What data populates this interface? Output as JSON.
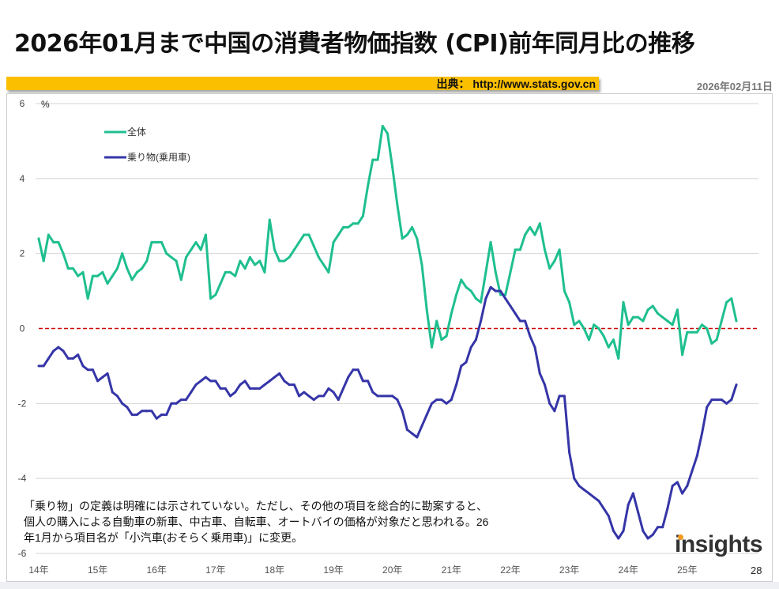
{
  "header": {
    "title": "2026年01月まで中国の消費者物価指数 (CPI)前年同月比の推移",
    "source": "出典： http://www.stats.gov.cn",
    "date": "2026年02月11日"
  },
  "note": [
    "「乗り物」の定義は明確には示されていない。ただし、その他の項目を総合的に勘案すると、",
    "個人の購入による自動車の新車、中古車、自転車、オートバイの価格が対象だと思われる。26",
    "年1月から項目名が「小汽車(おそらく乗用車)」に変更。"
  ],
  "logo": "insights",
  "page_number": "28",
  "chart_data": {
    "type": "line",
    "title": "",
    "ylabel": "%",
    "ylim": [
      -6,
      6
    ],
    "yticks": [
      6,
      4,
      2,
      0,
      -2,
      -4,
      -6
    ],
    "grid": true,
    "legend_position": "top-left",
    "x_start": "2014-03",
    "x_end": "2026-01",
    "xtick_labels": [
      "14年",
      "15年",
      "16年",
      "17年",
      "18年",
      "19年",
      "20年",
      "21年",
      "22年",
      "23年",
      "24年",
      "25年"
    ],
    "reference_line": {
      "y": 0,
      "color": "#cc0000",
      "style": "dashed"
    },
    "series": [
      {
        "name": "全体",
        "color": "#1fbf8f",
        "values": [
          2.4,
          1.8,
          2.5,
          2.3,
          2.3,
          2.0,
          1.6,
          1.6,
          1.4,
          1.5,
          0.8,
          1.4,
          1.4,
          1.5,
          1.2,
          1.4,
          1.6,
          2.0,
          1.6,
          1.3,
          1.5,
          1.6,
          1.8,
          2.3,
          2.3,
          2.3,
          2.0,
          1.9,
          1.8,
          1.3,
          1.9,
          2.1,
          2.3,
          2.1,
          2.5,
          0.8,
          0.9,
          1.2,
          1.5,
          1.5,
          1.4,
          1.8,
          1.6,
          1.9,
          1.7,
          1.8,
          1.5,
          2.9,
          2.1,
          1.8,
          1.8,
          1.9,
          2.1,
          2.3,
          2.5,
          2.5,
          2.2,
          1.9,
          1.7,
          1.5,
          2.3,
          2.5,
          2.7,
          2.7,
          2.8,
          2.8,
          3.0,
          3.8,
          4.5,
          4.5,
          5.4,
          5.2,
          4.3,
          3.3,
          2.4,
          2.5,
          2.7,
          2.4,
          1.7,
          0.5,
          -0.5,
          0.2,
          -0.3,
          -0.2,
          0.4,
          0.9,
          1.3,
          1.1,
          1.0,
          0.8,
          0.7,
          1.5,
          2.3,
          1.5,
          0.9,
          0.9,
          1.5,
          2.1,
          2.1,
          2.5,
          2.7,
          2.5,
          2.8,
          2.1,
          1.6,
          1.8,
          2.1,
          1.0,
          0.7,
          0.1,
          0.2,
          0.0,
          -0.3,
          0.1,
          0.0,
          -0.2,
          -0.5,
          -0.3,
          -0.8,
          0.7,
          0.1,
          0.3,
          0.3,
          0.2,
          0.5,
          0.6,
          0.4,
          0.3,
          0.2,
          0.1,
          0.5,
          -0.7,
          -0.1,
          -0.1,
          -0.1,
          0.1,
          0.0,
          -0.4,
          -0.3,
          0.2,
          0.7,
          0.8,
          0.2
        ]
      },
      {
        "name": "乗り物(乗用車)",
        "color": "#3535a8",
        "values": [
          -1.0,
          -1.0,
          -0.8,
          -0.6,
          -0.5,
          -0.6,
          -0.8,
          -0.8,
          -0.7,
          -1.0,
          -1.1,
          -1.1,
          -1.4,
          -1.3,
          -1.2,
          -1.7,
          -1.8,
          -2.0,
          -2.1,
          -2.3,
          -2.3,
          -2.2,
          -2.2,
          -2.2,
          -2.4,
          -2.3,
          -2.3,
          -2.0,
          -2.0,
          -1.9,
          -1.9,
          -1.7,
          -1.5,
          -1.4,
          -1.3,
          -1.4,
          -1.4,
          -1.6,
          -1.6,
          -1.8,
          -1.7,
          -1.5,
          -1.4,
          -1.6,
          -1.6,
          -1.6,
          -1.5,
          -1.4,
          -1.3,
          -1.2,
          -1.4,
          -1.5,
          -1.5,
          -1.8,
          -1.7,
          -1.8,
          -1.9,
          -1.8,
          -1.8,
          -1.6,
          -1.7,
          -1.9,
          -1.6,
          -1.3,
          -1.1,
          -1.1,
          -1.4,
          -1.4,
          -1.7,
          -1.8,
          -1.8,
          -1.8,
          -1.8,
          -1.9,
          -2.2,
          -2.7,
          -2.8,
          -2.9,
          -2.6,
          -2.3,
          -2.0,
          -1.9,
          -1.9,
          -2.0,
          -1.9,
          -1.5,
          -1.0,
          -0.9,
          -0.5,
          -0.3,
          0.2,
          0.8,
          1.1,
          1.0,
          1.0,
          0.8,
          0.6,
          0.4,
          0.2,
          0.2,
          -0.2,
          -0.5,
          -1.2,
          -1.5,
          -2.0,
          -2.2,
          -1.8,
          -1.8,
          -3.3,
          -4.0,
          -4.2,
          -4.3,
          -4.4,
          -4.5,
          -4.6,
          -4.8,
          -5.0,
          -5.4,
          -5.6,
          -5.4,
          -4.7,
          -4.4,
          -4.9,
          -5.4,
          -5.6,
          -5.5,
          -5.3,
          -5.3,
          -4.8,
          -4.2,
          -4.1,
          -4.4,
          -4.2,
          -3.8,
          -3.4,
          -2.8,
          -2.1,
          -1.9,
          -1.9,
          -1.9,
          -2.0,
          -1.9,
          -1.5
        ]
      }
    ]
  }
}
